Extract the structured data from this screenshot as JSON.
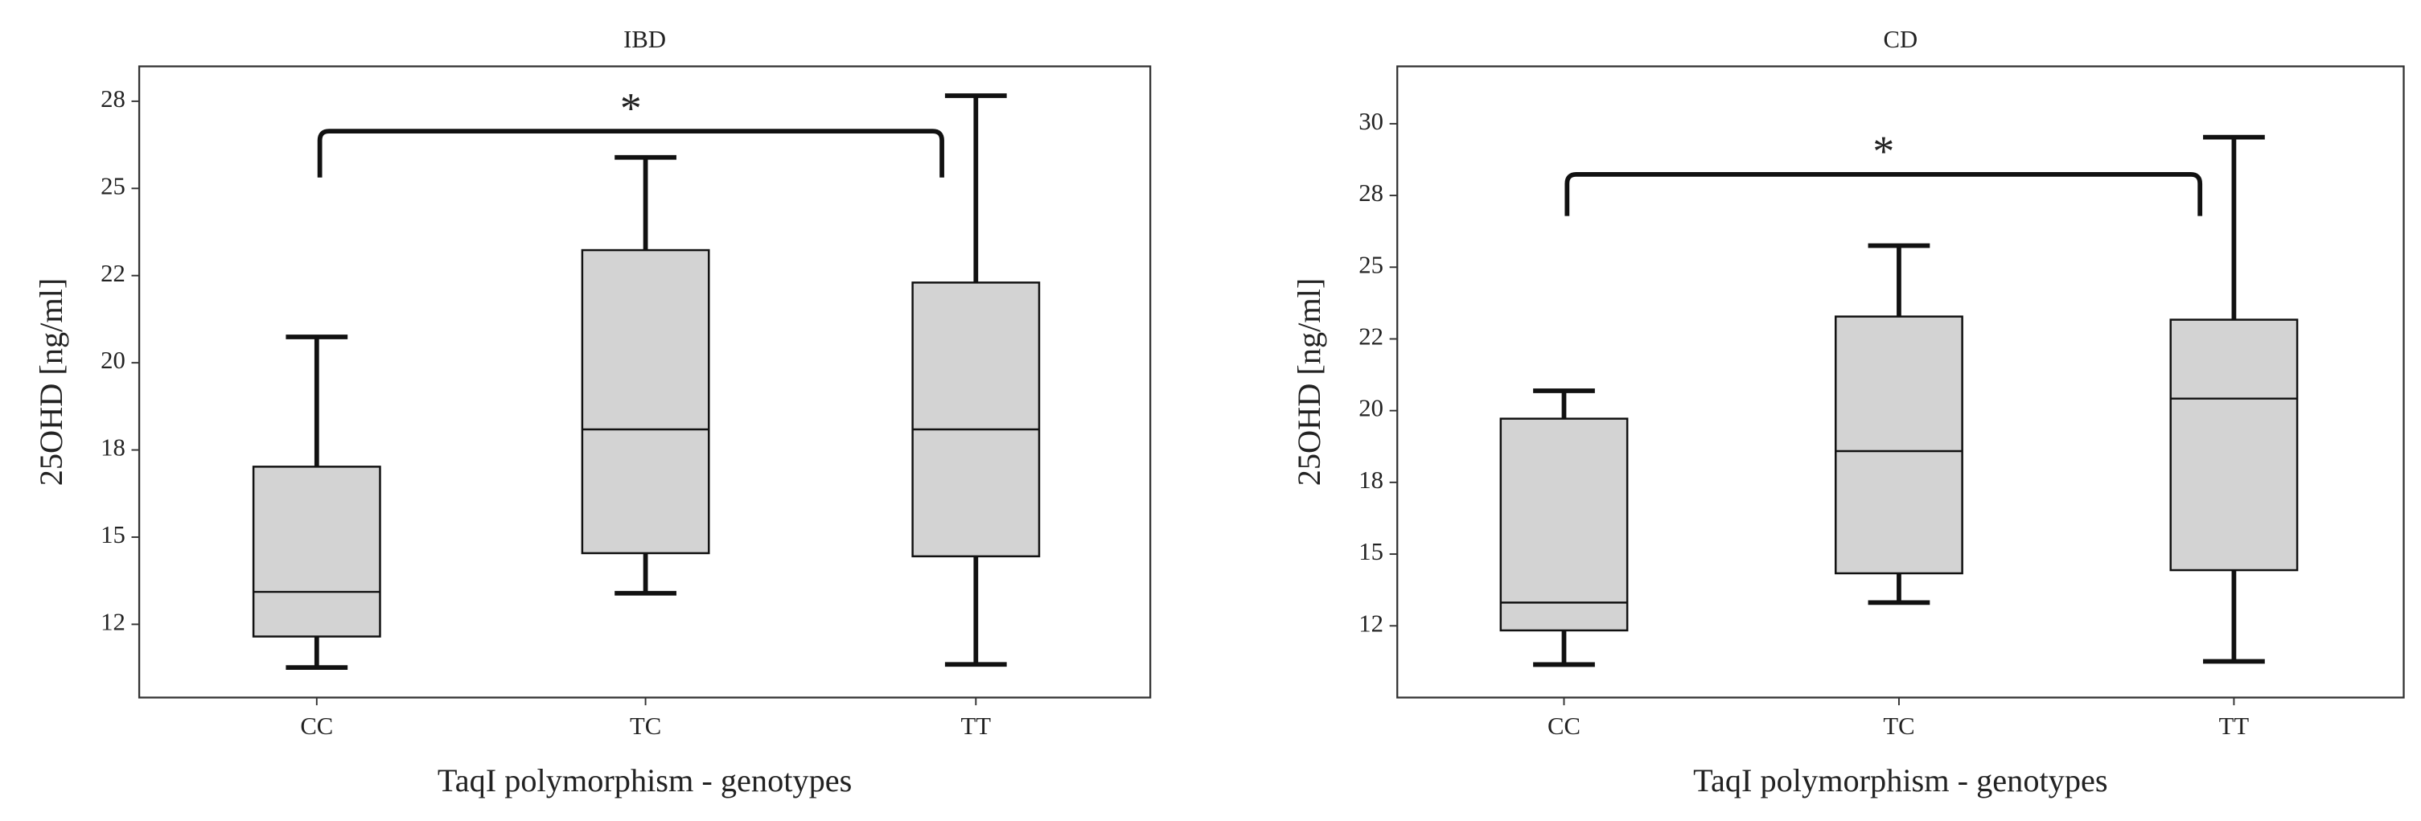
{
  "chart_data": [
    {
      "type": "box",
      "title": "IBD",
      "xlabel": "TaqI polymorphism - genotypes",
      "ylabel": "25OHD [ng/ml]",
      "categories": [
        "CC",
        "TC",
        "TT"
      ],
      "whisker_low": [
        11.26,
        13.39,
        11.35
      ],
      "q1": [
        12.15,
        14.54,
        14.45
      ],
      "median": [
        13.43,
        18.09,
        18.09
      ],
      "q3": [
        17.02,
        23.23,
        22.3
      ],
      "whisker_high": [
        20.74,
        25.89,
        27.66
      ],
      "color": "#d3d3d3",
      "ylim": [
        10.4,
        28.5
      ],
      "yticks": [
        {
          "value": 12.5,
          "label": "12"
        },
        15,
        {
          "value": 17.5,
          "label": "18"
        },
        20,
        {
          "value": 22.5,
          "label": "22"
        },
        25,
        {
          "value": 27.5,
          "label": "28"
        }
      ],
      "annotation": "*"
    },
    {
      "type": "box",
      "title": "CD",
      "xlabel": "TaqI polymorphism - genotypes",
      "ylabel": "25OHD [ng/ml]",
      "categories": [
        "CC",
        "TC",
        "TT"
      ],
      "whisker_low": [
        11.15,
        13.31,
        11.26
      ],
      "q1": [
        12.34,
        14.33,
        14.44
      ],
      "median": [
        13.31,
        18.59,
        20.42
      ],
      "q3": [
        19.72,
        23.28,
        23.17
      ],
      "whisker_high": [
        20.69,
        25.75,
        29.53
      ],
      "color": "#d3d3d3",
      "ylim": [
        10,
        32
      ],
      "yticks": [
        {
          "value": 12.5,
          "label": "12"
        },
        15,
        {
          "value": 17.5,
          "label": "18"
        },
        20,
        {
          "value": 22.5,
          "label": "22"
        },
        25,
        {
          "value": 27.5,
          "label": "28"
        },
        30
      ],
      "annotation": "*"
    }
  ]
}
